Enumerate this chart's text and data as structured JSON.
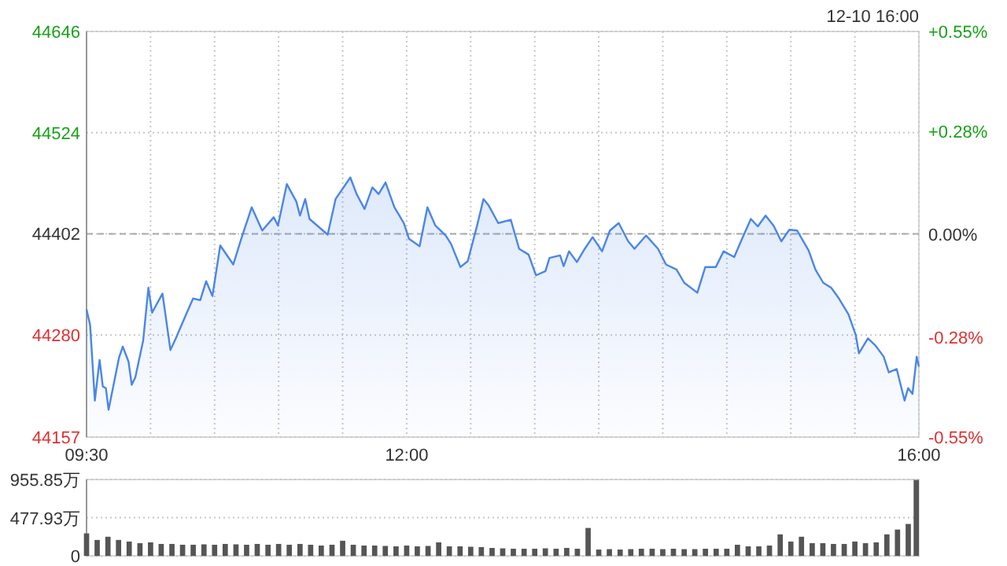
{
  "chart_data": [
    {
      "type": "area",
      "color": "#4a86e8",
      "xlim": [
        9.5,
        16
      ],
      "ylim": [
        44157,
        44646
      ],
      "y2lim": [
        -0.55,
        0.55
      ],
      "grid": true,
      "x": [
        9.5,
        9.528,
        9.565,
        9.602,
        9.627,
        9.651,
        9.672,
        9.754,
        9.783,
        9.828,
        9.853,
        9.881,
        9.942,
        9.983,
        10.012,
        10.093,
        10.155,
        10.197,
        10.278,
        10.332,
        10.388,
        10.434,
        10.483,
        10.544,
        10.646,
        10.708,
        10.79,
        10.872,
        10.962,
        10.995,
        11.064,
        11.138,
        11.167,
        11.208,
        11.241,
        11.383,
        11.445,
        11.56,
        11.609,
        11.671,
        11.732,
        11.781,
        11.835,
        11.904,
        11.978,
        12.018,
        12.101,
        12.162,
        12.224,
        12.305,
        12.346,
        12.42,
        12.477,
        12.55,
        12.6,
        12.641,
        12.715,
        12.813,
        12.878,
        12.952,
        13.01,
        13.084,
        13.115,
        13.198,
        13.226,
        13.268,
        13.329,
        13.391,
        13.452,
        13.526,
        13.587,
        13.656,
        13.73,
        13.779,
        13.87,
        13.963,
        14.025,
        14.107,
        14.168,
        14.27,
        14.332,
        14.414,
        14.475,
        14.558,
        14.619,
        14.688,
        14.742,
        14.803,
        14.865,
        14.926,
        14.988,
        15.049,
        15.139,
        15.192,
        15.253,
        15.315,
        15.376,
        15.45,
        15.507,
        15.532,
        15.602,
        15.663,
        15.725,
        15.765,
        15.827,
        15.888,
        15.916,
        15.95,
        15.983,
        16.0
      ],
      "values": [
        44311,
        44292,
        44201,
        44250,
        44218,
        44216,
        44190,
        44253,
        44266,
        44248,
        44220,
        44229,
        44273,
        44337,
        44307,
        44330,
        44262,
        44276,
        44305,
        44324,
        44322,
        44345,
        44327,
        44388,
        44365,
        44396,
        44434,
        44406,
        44422,
        44412,
        44462,
        44441,
        44424,
        44444,
        44420,
        44401,
        44444,
        44470,
        44450,
        44432,
        44458,
        44450,
        44464,
        44434,
        44415,
        44396,
        44387,
        44434,
        44412,
        44400,
        44390,
        44362,
        44369,
        44412,
        44444,
        44436,
        44415,
        44419,
        44384,
        44377,
        44352,
        44357,
        44373,
        44376,
        44363,
        44381,
        44368,
        44384,
        44398,
        44381,
        44406,
        44415,
        44393,
        44384,
        44400,
        44384,
        44365,
        44359,
        44343,
        44331,
        44362,
        44362,
        44381,
        44374,
        44396,
        44420,
        44411,
        44424,
        44412,
        44393,
        44407,
        44406,
        44382,
        44359,
        44343,
        44337,
        44324,
        44305,
        44280,
        44258,
        44276,
        44267,
        44254,
        44235,
        44239,
        44201,
        44216,
        44209,
        44254,
        44242
      ],
      "xticks": [
        {
          "value": 9.5,
          "label": "09:30"
        },
        {
          "value": 10,
          "label": null
        },
        {
          "value": 10.5,
          "label": null
        },
        {
          "value": 11,
          "label": null
        },
        {
          "value": 11.5,
          "label": null
        },
        {
          "value": 12,
          "label": "12:00"
        },
        {
          "value": 12.5,
          "label": null
        },
        {
          "value": 13,
          "label": null
        },
        {
          "value": 13.5,
          "label": null
        },
        {
          "value": 14,
          "label": null
        },
        {
          "value": 14.5,
          "label": null
        },
        {
          "value": 15,
          "label": null
        },
        {
          "value": 15.5,
          "label": null
        },
        {
          "value": 16,
          "label": "16:00"
        }
      ],
      "yticks": [
        44157,
        44280,
        44402,
        44524,
        44646
      ],
      "y2ticks": [
        {
          "value": -0.55,
          "label": "-0.55%"
        },
        {
          "value": -0.28,
          "label": "-0.28%"
        },
        {
          "value": 0,
          "label": "0.00%"
        },
        {
          "value": 0.28,
          "label": "+0.28%"
        },
        {
          "value": 0.55,
          "label": "+0.55%"
        }
      ],
      "ref_lines": [
        {
          "axis": "y",
          "value": 44402,
          "line_style": "dashed"
        }
      ],
      "annotations": [
        "12-10 16:00"
      ]
    },
    {
      "type": "bar",
      "color": "#555555",
      "xlim": [
        9.5,
        16
      ],
      "ylim": [
        0,
        955.85
      ],
      "grid": "y",
      "tick_labels": "y",
      "x": [
        9.5,
        9.583,
        9.667,
        9.75,
        9.833,
        9.917,
        10,
        10.083,
        10.167,
        10.25,
        10.333,
        10.417,
        10.5,
        10.583,
        10.667,
        10.75,
        10.833,
        10.917,
        11,
        11.083,
        11.167,
        11.25,
        11.333,
        11.417,
        11.5,
        11.583,
        11.667,
        11.75,
        11.833,
        11.917,
        12,
        12.083,
        12.167,
        12.25,
        12.333,
        12.417,
        12.5,
        12.583,
        12.667,
        12.75,
        12.833,
        12.917,
        13,
        13.083,
        13.167,
        13.25,
        13.333,
        13.417,
        13.5,
        13.583,
        13.667,
        13.75,
        13.833,
        13.917,
        14,
        14.083,
        14.167,
        14.25,
        14.333,
        14.417,
        14.5,
        14.583,
        14.667,
        14.75,
        14.833,
        14.917,
        15,
        15.083,
        15.167,
        15.25,
        15.333,
        15.417,
        15.5,
        15.583,
        15.667,
        15.75,
        15.833,
        15.917,
        16
      ],
      "values": [
        282,
        200,
        240,
        200,
        180,
        160,
        170,
        150,
        150,
        140,
        140,
        145,
        140,
        150,
        145,
        140,
        150,
        140,
        150,
        140,
        150,
        140,
        130,
        140,
        190,
        140,
        130,
        130,
        125,
        120,
        130,
        120,
        125,
        170,
        120,
        120,
        115,
        110,
        100,
        95,
        90,
        90,
        90,
        95,
        90,
        100,
        90,
        350,
        80,
        85,
        80,
        85,
        90,
        90,
        85,
        90,
        85,
        85,
        90,
        90,
        90,
        140,
        120,
        120,
        130,
        270,
        180,
        240,
        160,
        160,
        150,
        150,
        180,
        160,
        170,
        270,
        330,
        400,
        950
      ],
      "yticks": [
        {
          "value": 0,
          "label": "0"
        },
        {
          "value": 477.93,
          "label": "477.93万"
        },
        {
          "value": 955.85,
          "label": "955.85万"
        }
      ]
    }
  ]
}
